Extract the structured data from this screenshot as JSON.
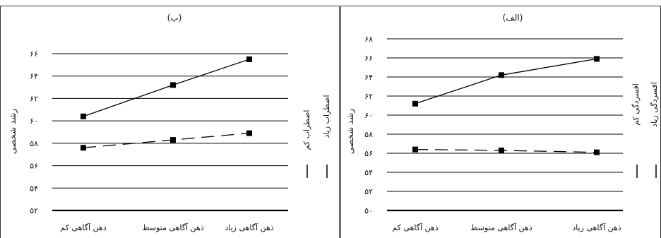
{
  "chart_data": [
    {
      "type": "line",
      "title": "(ب)",
      "ylabel": "رشد شخصی",
      "ylim": [
        52,
        66
      ],
      "yticks": [
        "۵۲",
        "۵۴",
        "۵۶",
        "۵۸",
        "۶۰",
        "۶۲",
        "۶۴",
        "۶۶"
      ],
      "ytick_values": [
        52,
        54,
        56,
        58,
        60,
        62,
        64,
        66
      ],
      "categories": [
        "ذهن آگاهی کم",
        "ذهن آگاهی متوسط",
        "ذهن آگاهی زیاد"
      ],
      "series": [
        {
          "name": "اضطراب کم",
          "style": "solid",
          "values": [
            60.4,
            63.2,
            65.5
          ]
        },
        {
          "name": "اضطراب زیاد",
          "style": "dashed",
          "values": [
            57.6,
            58.3,
            58.9
          ]
        }
      ],
      "legend_position": "right",
      "grid": true
    },
    {
      "type": "line",
      "title": "(الف)",
      "ylabel": "رشد شخصی",
      "ylim": [
        50,
        68
      ],
      "yticks": [
        "۵۰",
        "۵۲",
        "۵۴",
        "۵۶",
        "۵۸",
        "۶۰",
        "۶۲",
        "۶۴",
        "۶۶",
        "۶۸"
      ],
      "ytick_values": [
        50,
        52,
        54,
        56,
        58,
        60,
        62,
        64,
        66,
        68
      ],
      "categories": [
        "ذهن آگاهی کم",
        "ذهن آگاهی متوسط",
        "ذهن آگاهی زیاد"
      ],
      "series": [
        {
          "name": "افسردگی کم",
          "style": "solid",
          "values": [
            61.2,
            64.2,
            65.9
          ]
        },
        {
          "name": "افسردگی زیاد",
          "style": "dashed",
          "values": [
            56.4,
            56.3,
            56.1
          ]
        }
      ],
      "legend_position": "right",
      "grid": true
    }
  ]
}
